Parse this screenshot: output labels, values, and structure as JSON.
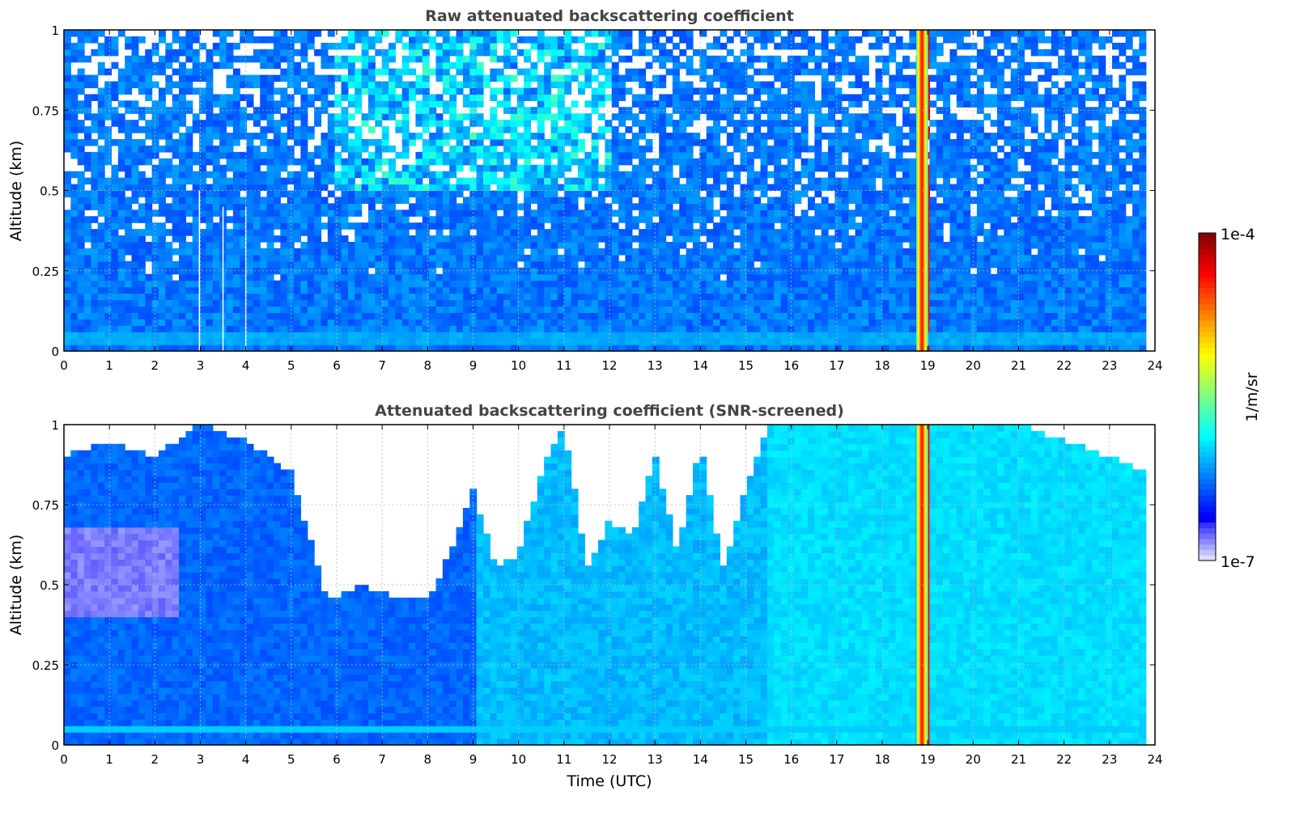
{
  "chart_data": [
    {
      "type": "heatmap",
      "title": "Raw attenuated backscattering coefficient",
      "xlabel": "",
      "ylabel": "Altitude (km)",
      "xlim": [
        0,
        24
      ],
      "ylim": [
        0,
        1
      ],
      "x_ticks": [
        "0",
        "1",
        "2",
        "3",
        "4",
        "5",
        "6",
        "7",
        "8",
        "9",
        "10",
        "11",
        "12",
        "13",
        "14",
        "15",
        "16",
        "17",
        "18",
        "19",
        "20",
        "21",
        "22",
        "23",
        "24"
      ],
      "y_ticks": [
        "0",
        "0.25",
        "0.5",
        "0.75",
        "1"
      ],
      "grid": true,
      "data_time_range_utc": [
        0,
        23.8
      ],
      "features": [
        {
          "time_utc": [
            18.75,
            19.0
          ],
          "altitude_km": [
            0,
            1
          ],
          "log10_value": -4.3
        },
        {
          "time_utc": 2.98,
          "altitude_km": [
            0,
            0.5
          ],
          "missing": true
        },
        {
          "time_utc": 3.5,
          "altitude_km": [
            0,
            0.45
          ],
          "missing": true
        },
        {
          "time_utc": 4.0,
          "altitude_km": [
            0,
            0.45
          ],
          "missing": true
        },
        {
          "altitude_km": [
            0.03,
            0.06
          ],
          "log10_value": -6.1
        }
      ],
      "background_log10": {
        "low_altitude": -6.2,
        "high_altitude_noise": -6.5
      }
    },
    {
      "type": "heatmap",
      "title": "Attenuated backscattering coefficient (SNR-screened)",
      "xlabel": "Time (UTC)",
      "ylabel": "Altitude (km)",
      "xlim": [
        0,
        24
      ],
      "ylim": [
        0,
        1
      ],
      "x_ticks": [
        "0",
        "1",
        "2",
        "3",
        "4",
        "5",
        "6",
        "7",
        "8",
        "9",
        "10",
        "11",
        "12",
        "13",
        "14",
        "15",
        "16",
        "17",
        "18",
        "19",
        "20",
        "21",
        "22",
        "23",
        "24"
      ],
      "y_ticks": [
        "0",
        "0.25",
        "0.5",
        "0.75",
        "1"
      ],
      "grid": true,
      "data_time_range_utc": [
        0,
        23.8
      ],
      "screened_top_km": {
        "time_utc": [
          0,
          1,
          2,
          3,
          4,
          5,
          5.8,
          6.5,
          7.5,
          8,
          8.5,
          9,
          9.5,
          10,
          10.5,
          11,
          11.5,
          12,
          12.5,
          13,
          13.5,
          14,
          14.5,
          15,
          15.5,
          16,
          17,
          18,
          19,
          20,
          21,
          22,
          23,
          23.8
        ],
        "altitude_km": [
          0.9,
          0.95,
          0.9,
          1.0,
          0.95,
          0.85,
          0.45,
          0.5,
          0.45,
          0.45,
          0.6,
          0.8,
          0.55,
          0.6,
          0.85,
          1.0,
          0.55,
          0.7,
          0.65,
          0.9,
          0.6,
          0.95,
          0.55,
          0.8,
          1.0,
          1.0,
          1.0,
          1.0,
          1.0,
          1.0,
          1.0,
          0.95,
          0.9,
          0.85
        ]
      },
      "features": [
        {
          "time_utc": [
            18.75,
            19.0
          ],
          "altitude_km": [
            0,
            1
          ],
          "log10_value": -4.3
        },
        {
          "time_utc": [
            0,
            2.5
          ],
          "altitude_km": [
            0.4,
            0.68
          ],
          "log10_value": -6.8
        }
      ]
    }
  ],
  "colorbar": {
    "label": "1/m/sr",
    "top_label": "1e-4",
    "bottom_label": "1e-7",
    "range_log10": [
      -7,
      -4
    ],
    "colormap": "jet"
  },
  "colors": {
    "axis": "#000000",
    "title_text": "#444444",
    "grid": "#bbbbbb"
  }
}
